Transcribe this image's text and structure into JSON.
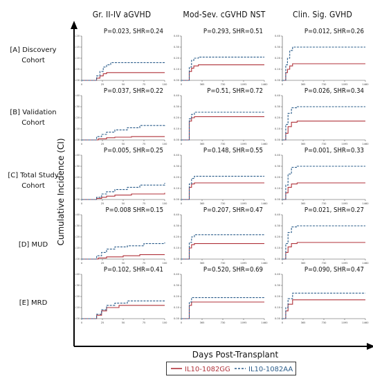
{
  "columns": [
    "Gr. II-IV aGVHD",
    "Mod-Sev. cGVHD NST",
    "Clin. Sig. GVHD"
  ],
  "rows": [
    {
      "label_lines": [
        "[A] Discovery",
        "Cohort"
      ]
    },
    {
      "label_lines": [
        "[B] Validation",
        "Cohort"
      ]
    },
    {
      "label_lines": [
        "[C] Total Study",
        "Cohort"
      ]
    },
    {
      "label_lines": [
        "[D] MUD"
      ]
    },
    {
      "label_lines": [
        "[E] MRD"
      ]
    }
  ],
  "y_axis_title": "Cumulative Incidence (CI)",
  "x_axis_title": "Days Post-Transplant",
  "legend": [
    {
      "label": "IL10-1082GG",
      "color": "#b0323a",
      "style": "solid"
    },
    {
      "label": "IL10-1082AA",
      "color": "#2a5c8a",
      "style": "dashed"
    }
  ],
  "colors": {
    "gg": "#b0323a",
    "aa": "#2a5c8a",
    "axis": "#000000"
  },
  "chart_data": [
    {
      "type": "line",
      "row": "[A] Discovery Cohort",
      "column": "Gr. II-IV aGVHD",
      "annotation": "P=0.023, SHR=0.24",
      "x_ticks": [
        "0",
        "25",
        "50",
        "75",
        "100"
      ],
      "y_ticks": [
        "0.00",
        "0.05",
        "0.10",
        "0.15",
        "0.20"
      ],
      "xlim": [
        0,
        100
      ],
      "ylim": [
        0,
        0.2
      ],
      "series": [
        {
          "name": "IL10-1082GG",
          "x": [
            0,
            14,
            18,
            22,
            26,
            30,
            100
          ],
          "y": [
            0,
            0,
            0.01,
            0.02,
            0.03,
            0.035,
            0.035
          ]
        },
        {
          "name": "IL10-1082AA",
          "x": [
            0,
            14,
            18,
            22,
            26,
            30,
            35,
            100
          ],
          "y": [
            0,
            0,
            0.02,
            0.04,
            0.06,
            0.07,
            0.08,
            0.085
          ]
        }
      ]
    },
    {
      "type": "line",
      "row": "[A] Discovery Cohort",
      "column": "Mod-Sev. cGVHD NST",
      "annotation": "P=0.293, SHR=0.51",
      "x_ticks": [
        "0",
        "365",
        "730",
        "1095",
        "1460"
      ],
      "y_ticks": [
        "0.00",
        "0.10",
        "0.20",
        "0.30",
        "0.40"
      ],
      "xlim": [
        0,
        1460
      ],
      "ylim": [
        0,
        0.4
      ],
      "series": [
        {
          "name": "IL10-1082GG",
          "x": [
            0,
            100,
            140,
            180,
            220,
            300,
            1460
          ],
          "y": [
            0,
            0,
            0.08,
            0.11,
            0.13,
            0.14,
            0.14
          ]
        },
        {
          "name": "IL10-1082AA",
          "x": [
            0,
            100,
            140,
            180,
            220,
            300,
            1460
          ],
          "y": [
            0,
            0,
            0.12,
            0.18,
            0.2,
            0.21,
            0.21
          ]
        }
      ]
    },
    {
      "type": "line",
      "row": "[A] Discovery Cohort",
      "column": "Clin. Sig. GVHD",
      "annotation": "P=0.012, SHR=0.26",
      "x_ticks": [
        "0",
        "365",
        "730",
        "1095",
        "1460"
      ],
      "y_ticks": [
        "0.00",
        "0.10",
        "0.20",
        "0.30",
        "0.40"
      ],
      "xlim": [
        0,
        1460
      ],
      "ylim": [
        0,
        0.4
      ],
      "series": [
        {
          "name": "IL10-1082GG",
          "x": [
            0,
            30,
            60,
            90,
            130,
            180,
            1460
          ],
          "y": [
            0,
            0,
            0.07,
            0.1,
            0.13,
            0.15,
            0.15
          ]
        },
        {
          "name": "IL10-1082AA",
          "x": [
            0,
            30,
            60,
            90,
            130,
            180,
            1460
          ],
          "y": [
            0,
            0,
            0.14,
            0.2,
            0.27,
            0.3,
            0.3
          ]
        }
      ]
    },
    {
      "type": "line",
      "row": "[B] Validation Cohort",
      "column": "Gr. II-IV aGVHD",
      "annotation": "P=0.037, SHR=0.22",
      "x_ticks": [
        "0",
        "25",
        "50",
        "75",
        "100"
      ],
      "y_ticks": [
        "0.00",
        "0.10",
        "0.20",
        "0.30",
        "0.40"
      ],
      "xlim": [
        0,
        100
      ],
      "ylim": [
        0,
        0.4
      ],
      "series": [
        {
          "name": "IL10-1082GG",
          "x": [
            0,
            14,
            20,
            30,
            40,
            60,
            100
          ],
          "y": [
            0,
            0,
            0.01,
            0.02,
            0.025,
            0.03,
            0.03
          ]
        },
        {
          "name": "IL10-1082AA",
          "x": [
            0,
            14,
            18,
            24,
            30,
            40,
            55,
            70,
            100
          ],
          "y": [
            0,
            0,
            0.03,
            0.05,
            0.07,
            0.09,
            0.11,
            0.13,
            0.14
          ]
        }
      ]
    },
    {
      "type": "line",
      "row": "[B] Validation Cohort",
      "column": "Mod-Sev. cGVHD NST",
      "annotation": "P=0.51, SHR=0.72",
      "x_ticks": [
        "0",
        "365",
        "730",
        "1095",
        "1460"
      ],
      "y_ticks": [
        "0.00",
        "0.10",
        "0.20",
        "0.30",
        "0.40"
      ],
      "xlim": [
        0,
        1460
      ],
      "ylim": [
        0,
        0.4
      ],
      "series": [
        {
          "name": "IL10-1082GG",
          "x": [
            0,
            100,
            140,
            180,
            230,
            1460
          ],
          "y": [
            0,
            0,
            0.17,
            0.2,
            0.21,
            0.21
          ]
        },
        {
          "name": "IL10-1082AA",
          "x": [
            0,
            100,
            140,
            180,
            230,
            1460
          ],
          "y": [
            0,
            0,
            0.19,
            0.23,
            0.25,
            0.25
          ]
        }
      ]
    },
    {
      "type": "line",
      "row": "[B] Validation Cohort",
      "column": "Clin. Sig. GVHD",
      "annotation": "P=0.026, SHR=0.34",
      "x_ticks": [
        "0",
        "365",
        "730",
        "1095",
        "1460"
      ],
      "y_ticks": [
        "0.00",
        "0.10",
        "0.20",
        "0.30",
        "0.40"
      ],
      "xlim": [
        0,
        1460
      ],
      "ylim": [
        0,
        0.4
      ],
      "series": [
        {
          "name": "IL10-1082GG",
          "x": [
            0,
            30,
            60,
            100,
            160,
            260,
            1460
          ],
          "y": [
            0,
            0,
            0.06,
            0.12,
            0.16,
            0.17,
            0.17
          ]
        },
        {
          "name": "IL10-1082AA",
          "x": [
            0,
            30,
            60,
            100,
            160,
            260,
            1460
          ],
          "y": [
            0,
            0,
            0.14,
            0.24,
            0.29,
            0.3,
            0.3
          ]
        }
      ]
    },
    {
      "type": "line",
      "row": "[C] Total Study Cohort",
      "column": "Gr. II-IV aGVHD",
      "annotation": "P=0.005, SHR=0.25",
      "x_ticks": [
        "0",
        "25",
        "50",
        "75",
        "100"
      ],
      "y_ticks": [
        "0.00",
        "0.10",
        "0.20",
        "0.30",
        "0.40"
      ],
      "xlim": [
        0,
        100
      ],
      "ylim": [
        0,
        0.4
      ],
      "series": [
        {
          "name": "IL10-1082GG",
          "x": [
            0,
            14,
            18,
            24,
            30,
            40,
            60,
            100
          ],
          "y": [
            0,
            0,
            0.01,
            0.02,
            0.03,
            0.04,
            0.05,
            0.06
          ]
        },
        {
          "name": "IL10-1082AA",
          "x": [
            0,
            14,
            18,
            24,
            30,
            40,
            55,
            70,
            100
          ],
          "y": [
            0,
            0,
            0.02,
            0.05,
            0.07,
            0.09,
            0.11,
            0.13,
            0.15
          ]
        }
      ]
    },
    {
      "type": "line",
      "row": "[C] Total Study Cohort",
      "column": "Mod-Sev. cGVHD NST",
      "annotation": "P=0.148, SHR=0.55",
      "x_ticks": [
        "0",
        "365",
        "730",
        "1095",
        "1460"
      ],
      "y_ticks": [
        "0.00",
        "0.10",
        "0.20",
        "0.30",
        "0.40"
      ],
      "xlim": [
        0,
        1460
      ],
      "ylim": [
        0,
        0.4
      ],
      "series": [
        {
          "name": "IL10-1082GG",
          "x": [
            0,
            100,
            140,
            180,
            230,
            1460
          ],
          "y": [
            0,
            0,
            0.11,
            0.14,
            0.15,
            0.15
          ]
        },
        {
          "name": "IL10-1082AA",
          "x": [
            0,
            100,
            140,
            180,
            230,
            1460
          ],
          "y": [
            0,
            0,
            0.14,
            0.19,
            0.21,
            0.21
          ]
        }
      ]
    },
    {
      "type": "line",
      "row": "[C] Total Study Cohort",
      "column": "Clin. Sig. GVHD",
      "annotation": "P=0.001, SHR=0.33",
      "x_ticks": [
        "0",
        "365",
        "730",
        "1095",
        "1460"
      ],
      "y_ticks": [
        "0.00",
        "0.10",
        "0.20",
        "0.30",
        "0.40"
      ],
      "xlim": [
        0,
        1460
      ],
      "ylim": [
        0,
        0.4
      ],
      "series": [
        {
          "name": "IL10-1082GG",
          "x": [
            0,
            30,
            60,
            100,
            160,
            260,
            1460
          ],
          "y": [
            0,
            0,
            0.06,
            0.11,
            0.14,
            0.15,
            0.15
          ]
        },
        {
          "name": "IL10-1082AA",
          "x": [
            0,
            30,
            60,
            100,
            160,
            260,
            1460
          ],
          "y": [
            0,
            0,
            0.13,
            0.23,
            0.29,
            0.3,
            0.3
          ]
        }
      ]
    },
    {
      "type": "line",
      "row": "[D] MUD",
      "column": "Gr. II-IV aGVHD",
      "annotation": "P=0.008 SHR=0.15",
      "x_ticks": [
        "0",
        "25",
        "50",
        "75",
        "100"
      ],
      "y_ticks": [
        "0.00",
        "0.10",
        "0.20",
        "0.30",
        "0.40"
      ],
      "xlim": [
        0,
        100
      ],
      "ylim": [
        0,
        0.4
      ],
      "series": [
        {
          "name": "IL10-1082GG",
          "x": [
            0,
            14,
            20,
            30,
            50,
            70,
            100
          ],
          "y": [
            0,
            0,
            0.01,
            0.02,
            0.03,
            0.04,
            0.04
          ]
        },
        {
          "name": "IL10-1082AA",
          "x": [
            0,
            14,
            18,
            24,
            30,
            40,
            55,
            75,
            100
          ],
          "y": [
            0,
            0,
            0.03,
            0.06,
            0.09,
            0.11,
            0.12,
            0.14,
            0.15
          ]
        }
      ]
    },
    {
      "type": "line",
      "row": "[D] MUD",
      "column": "Mod-Sev. cGVHD NST",
      "annotation": "P=0.207, SHR=0.47",
      "x_ticks": [
        "0",
        "365",
        "730",
        "1095",
        "1460"
      ],
      "y_ticks": [
        "0.00",
        "0.10",
        "0.20",
        "0.30",
        "0.40"
      ],
      "xlim": [
        0,
        1460
      ],
      "ylim": [
        0,
        0.4
      ],
      "series": [
        {
          "name": "IL10-1082GG",
          "x": [
            0,
            100,
            140,
            180,
            230,
            1460
          ],
          "y": [
            0,
            0,
            0.1,
            0.13,
            0.14,
            0.14
          ]
        },
        {
          "name": "IL10-1082AA",
          "x": [
            0,
            100,
            140,
            180,
            230,
            1460
          ],
          "y": [
            0,
            0,
            0.15,
            0.2,
            0.22,
            0.22
          ]
        }
      ]
    },
    {
      "type": "line",
      "row": "[D] MUD",
      "column": "Clin. Sig. GVHD",
      "annotation": "P=0.021, SHR=0.27",
      "x_ticks": [
        "0",
        "365",
        "730",
        "1095",
        "1460"
      ],
      "y_ticks": [
        "0.00",
        "0.10",
        "0.20",
        "0.30",
        "0.40"
      ],
      "xlim": [
        0,
        1460
      ],
      "ylim": [
        0,
        0.4
      ],
      "series": [
        {
          "name": "IL10-1082GG",
          "x": [
            0,
            30,
            60,
            100,
            160,
            260,
            1460
          ],
          "y": [
            0,
            0,
            0.06,
            0.11,
            0.14,
            0.15,
            0.15
          ]
        },
        {
          "name": "IL10-1082AA",
          "x": [
            0,
            30,
            60,
            100,
            160,
            260,
            1460
          ],
          "y": [
            0,
            0,
            0.14,
            0.24,
            0.29,
            0.3,
            0.3
          ]
        }
      ]
    },
    {
      "type": "line",
      "row": "[E] MRD",
      "column": "Gr. II-IV aGVHD",
      "annotation": "P=0.102, SHR=0.41",
      "x_ticks": [
        "0",
        "25",
        "50",
        "75",
        "100"
      ],
      "y_ticks": [
        "0.00",
        "0.10",
        "0.20",
        "0.30",
        "0.40"
      ],
      "xlim": [
        0,
        100
      ],
      "ylim": [
        0,
        0.4
      ],
      "series": [
        {
          "name": "IL10-1082GG",
          "x": [
            0,
            14,
            18,
            24,
            30,
            45,
            100
          ],
          "y": [
            0,
            0,
            0.03,
            0.07,
            0.1,
            0.12,
            0.12
          ]
        },
        {
          "name": "IL10-1082AA",
          "x": [
            0,
            14,
            18,
            24,
            30,
            40,
            55,
            100
          ],
          "y": [
            0,
            0,
            0.04,
            0.08,
            0.12,
            0.14,
            0.16,
            0.16
          ]
        }
      ]
    },
    {
      "type": "line",
      "row": "[E] MRD",
      "column": "Mod-Sev. cGVHD NST",
      "annotation": "P=0.520, SHR=0.69",
      "x_ticks": [
        "0",
        "365",
        "730",
        "1095",
        "1460"
      ],
      "y_ticks": [
        "0.00",
        "0.10",
        "0.20",
        "0.30",
        "0.40"
      ],
      "xlim": [
        0,
        1460
      ],
      "ylim": [
        0,
        0.4
      ],
      "series": [
        {
          "name": "IL10-1082GG",
          "x": [
            0,
            100,
            140,
            180,
            1460
          ],
          "y": [
            0,
            0,
            0.12,
            0.15,
            0.15
          ]
        },
        {
          "name": "IL10-1082AA",
          "x": [
            0,
            100,
            140,
            180,
            1460
          ],
          "y": [
            0,
            0,
            0.15,
            0.19,
            0.19
          ]
        }
      ]
    },
    {
      "type": "line",
      "row": "[E] MRD",
      "column": "Clin. Sig. GVHD",
      "annotation": "P=0.090, SHR=0.47",
      "x_ticks": [
        "0",
        "365",
        "730",
        "1095",
        "1460"
      ],
      "y_ticks": [
        "0.00",
        "0.10",
        "0.20",
        "0.30",
        "0.40"
      ],
      "xlim": [
        0,
        1460
      ],
      "ylim": [
        0,
        0.4
      ],
      "series": [
        {
          "name": "IL10-1082GG",
          "x": [
            0,
            30,
            60,
            100,
            180,
            1460
          ],
          "y": [
            0,
            0,
            0.07,
            0.13,
            0.17,
            0.17
          ]
        },
        {
          "name": "IL10-1082AA",
          "x": [
            0,
            30,
            60,
            100,
            180,
            1460
          ],
          "y": [
            0,
            0,
            0.1,
            0.18,
            0.23,
            0.23
          ]
        }
      ]
    }
  ]
}
